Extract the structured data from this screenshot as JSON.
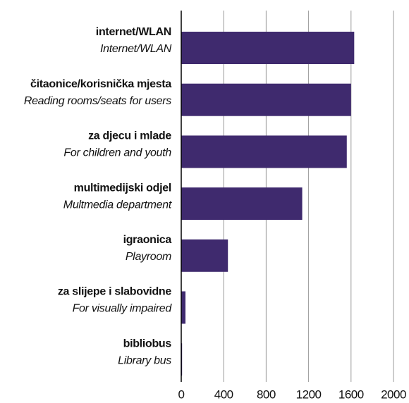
{
  "chart_data": {
    "type": "barh",
    "categories": [
      "internet/WLAN",
      "čitaonice/korisnička mjesta",
      "za djecu i mlade",
      "multimedijski odjel",
      "igraonica",
      "za slijepe i slabovidne",
      "bibliobus"
    ],
    "category_translations": [
      "Internet/WLAN",
      "Reading rooms/seats for users",
      "For children and youth",
      "Multmedia department",
      "Playroom",
      "For visually impaired",
      "Library bus"
    ],
    "values": [
      1630,
      1600,
      1560,
      1140,
      440,
      40,
      8
    ],
    "color": "#3f2a6e",
    "xlim": [
      0,
      2000
    ],
    "xticks": [
      0,
      400,
      800,
      1200,
      1600,
      2000
    ],
    "grid": true
  }
}
